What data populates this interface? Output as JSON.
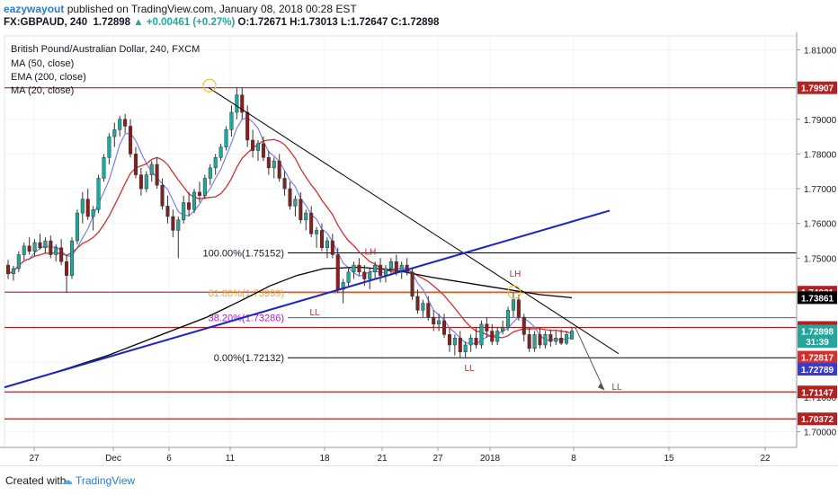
{
  "header": {
    "author": "eazywayout",
    "published_text": "published on TradingView.com, January 08, 2018 00:28 EST",
    "symbol": "FX:GBPAUD, 240",
    "last": "1.72898",
    "change": "▲ +0.00461 (+0.27%)",
    "ohlc_open_label": "O:",
    "ohlc_open": "1.72671",
    "ohlc_high_label": "H:",
    "ohlc_high": "1.73013",
    "ohlc_low_label": "L:",
    "ohlc_low": "1.72647",
    "ohlc_close_label": "C:",
    "ohlc_close": "1.72898"
  },
  "legend": {
    "title": "British Pound/Australian Dollar, 240, FXCM",
    "items": [
      "MA (50, close)",
      "EMA (200, close)",
      "MA (20, close)"
    ]
  },
  "footer": {
    "created_with": "Created with",
    "brand": "TradingView"
  },
  "colors": {
    "up_candle": "#26a69a",
    "down_candle": "#8b1d1d",
    "ma50": "#d32f2f",
    "ema200": "#000000",
    "ma20": "#7b7ef0",
    "trendline_up": "#1a24c8",
    "resistance": "#b22222",
    "fib_61": "#f0a030",
    "fib_38": "#b020c0"
  },
  "chart_data": {
    "type": "candlestick",
    "symbol": "GBPAUD",
    "timeframe": "240",
    "ylim": [
      1.6955,
      1.814
    ],
    "x_ticks": [
      "27",
      "Dec",
      "6",
      "11",
      "18",
      "21",
      "27",
      "2018",
      "8",
      "15",
      "22"
    ],
    "y_ticks": [
      "1.81000",
      "1.80000",
      "1.79000",
      "1.78000",
      "1.77000",
      "1.76000",
      "1.75000",
      "1.74000",
      "1.73000",
      "1.72000",
      "1.71000",
      "1.70000"
    ],
    "price_tags": [
      {
        "label": "1.79907",
        "value": 1.79907,
        "color": "#b22222"
      },
      {
        "label": "1.74021",
        "value": 1.74021,
        "color": "#b22222"
      },
      {
        "label": "1.73861",
        "value": 1.73861,
        "color": "#000000"
      },
      {
        "label": "1.73004",
        "value": 1.73004,
        "color": "#b22222"
      },
      {
        "label": "1.72898",
        "value": 1.72898,
        "color": "#26a69a"
      },
      {
        "label": "31:39",
        "value": 1.726,
        "color": "#26a69a"
      },
      {
        "label": "1.72817",
        "value": 1.7215,
        "color": "#d32f2f"
      },
      {
        "label": "1.72789",
        "value": 1.718,
        "color": "#3a3ad0"
      },
      {
        "label": "1.71147",
        "value": 1.71147,
        "color": "#b22222"
      },
      {
        "label": "1.70372",
        "value": 1.70372,
        "color": "#b22222"
      }
    ],
    "horizontal_levels": [
      1.79907,
      1.74021,
      1.73004,
      1.71147,
      1.70372
    ],
    "fibonacci": [
      {
        "label": "100.00%(1.75152)",
        "value": 1.75152
      },
      {
        "label": "61.80%(1.73999)",
        "value": 1.73999
      },
      {
        "label": "38.20%(1.73286)",
        "value": 1.73286
      },
      {
        "label": "0.00%(1.72132)",
        "value": 1.72132
      }
    ],
    "annotations": [
      "LH",
      "LL",
      "LH",
      "LL",
      "LL"
    ],
    "candles": [
      [
        1.748,
        1.7495,
        1.744,
        1.7455
      ],
      [
        1.7455,
        1.7478,
        1.7435,
        1.747
      ],
      [
        1.747,
        1.752,
        1.746,
        1.751
      ],
      [
        1.751,
        1.7545,
        1.7495,
        1.7535
      ],
      [
        1.7535,
        1.756,
        1.751,
        1.752
      ],
      [
        1.752,
        1.7555,
        1.7505,
        1.7545
      ],
      [
        1.7545,
        1.757,
        1.7525,
        1.753
      ],
      [
        1.753,
        1.756,
        1.7515,
        1.755
      ],
      [
        1.755,
        1.7565,
        1.75,
        1.751
      ],
      [
        1.751,
        1.754,
        1.749,
        1.753
      ],
      [
        1.753,
        1.7555,
        1.748,
        1.749
      ],
      [
        1.749,
        1.751,
        1.74,
        1.745
      ],
      [
        1.745,
        1.756,
        1.744,
        1.755
      ],
      [
        1.755,
        1.764,
        1.754,
        1.763
      ],
      [
        1.763,
        1.769,
        1.76,
        1.767
      ],
      [
        1.767,
        1.77,
        1.761,
        1.762
      ],
      [
        1.762,
        1.765,
        1.758,
        1.764
      ],
      [
        1.764,
        1.774,
        1.763,
        1.773
      ],
      [
        1.773,
        1.78,
        1.772,
        1.779
      ],
      [
        1.779,
        1.786,
        1.777,
        1.785
      ],
      [
        1.785,
        1.789,
        1.782,
        1.787
      ],
      [
        1.787,
        1.791,
        1.785,
        1.79
      ],
      [
        1.79,
        1.7915,
        1.786,
        1.788
      ],
      [
        1.788,
        1.79,
        1.779,
        1.78
      ],
      [
        1.78,
        1.782,
        1.773,
        1.774
      ],
      [
        1.774,
        1.776,
        1.768,
        1.77
      ],
      [
        1.77,
        1.775,
        1.769,
        1.774
      ],
      [
        1.774,
        1.778,
        1.772,
        1.777
      ],
      [
        1.777,
        1.779,
        1.77,
        1.771
      ],
      [
        1.771,
        1.773,
        1.764,
        1.765
      ],
      [
        1.765,
        1.768,
        1.76,
        1.762
      ],
      [
        1.762,
        1.764,
        1.756,
        1.758
      ],
      [
        1.758,
        1.762,
        1.75,
        1.761
      ],
      [
        1.761,
        1.768,
        1.76,
        1.766
      ],
      [
        1.766,
        1.769,
        1.762,
        1.764
      ],
      [
        1.764,
        1.77,
        1.763,
        1.769
      ],
      [
        1.769,
        1.772,
        1.766,
        1.768
      ],
      [
        1.768,
        1.774,
        1.767,
        1.773
      ],
      [
        1.773,
        1.777,
        1.771,
        1.776
      ],
      [
        1.776,
        1.78,
        1.774,
        1.779
      ],
      [
        1.779,
        1.783,
        1.778,
        1.782
      ],
      [
        1.782,
        1.788,
        1.781,
        1.787
      ],
      [
        1.787,
        1.794,
        1.785,
        1.792
      ],
      [
        1.792,
        1.7991,
        1.79,
        1.797
      ],
      [
        1.797,
        1.799,
        1.79,
        1.792
      ],
      [
        1.792,
        1.794,
        1.782,
        1.784
      ],
      [
        1.784,
        1.787,
        1.779,
        1.781
      ],
      [
        1.781,
        1.784,
        1.778,
        1.783
      ],
      [
        1.783,
        1.785,
        1.778,
        1.779
      ],
      [
        1.779,
        1.781,
        1.774,
        1.776
      ],
      [
        1.776,
        1.779,
        1.773,
        1.778
      ],
      [
        1.778,
        1.78,
        1.772,
        1.773
      ],
      [
        1.773,
        1.775,
        1.768,
        1.77
      ],
      [
        1.77,
        1.772,
        1.764,
        1.765
      ],
      [
        1.765,
        1.768,
        1.762,
        1.767
      ],
      [
        1.767,
        1.769,
        1.76,
        1.761
      ],
      [
        1.761,
        1.764,
        1.758,
        1.763
      ],
      [
        1.763,
        1.765,
        1.756,
        1.757
      ],
      [
        1.757,
        1.759,
        1.753,
        1.758
      ],
      [
        1.758,
        1.76,
        1.752,
        1.753
      ],
      [
        1.753,
        1.756,
        1.75,
        1.755
      ],
      [
        1.755,
        1.757,
        1.75,
        1.751
      ],
      [
        1.751,
        1.753,
        1.74,
        1.741
      ],
      [
        1.741,
        1.744,
        1.737,
        1.743
      ],
      [
        1.743,
        1.747,
        1.742,
        1.746
      ],
      [
        1.746,
        1.749,
        1.744,
        1.748
      ],
      [
        1.748,
        1.75,
        1.745,
        1.746
      ],
      [
        1.746,
        1.748,
        1.742,
        1.744
      ],
      [
        1.744,
        1.747,
        1.741,
        1.746
      ],
      [
        1.746,
        1.749,
        1.744,
        1.748
      ],
      [
        1.748,
        1.75,
        1.743,
        1.745
      ],
      [
        1.745,
        1.748,
        1.743,
        1.747
      ],
      [
        1.747,
        1.75,
        1.745,
        1.749
      ],
      [
        1.749,
        1.751,
        1.745,
        1.746
      ],
      [
        1.746,
        1.749,
        1.744,
        1.748
      ],
      [
        1.748,
        1.75,
        1.745,
        1.746
      ],
      [
        1.746,
        1.747,
        1.738,
        1.739
      ],
      [
        1.739,
        1.741,
        1.734,
        1.735
      ],
      [
        1.735,
        1.738,
        1.733,
        1.737
      ],
      [
        1.737,
        1.739,
        1.732,
        1.733
      ],
      [
        1.733,
        1.735,
        1.729,
        1.731
      ],
      [
        1.731,
        1.734,
        1.729,
        1.732
      ],
      [
        1.732,
        1.734,
        1.727,
        1.728
      ],
      [
        1.728,
        1.73,
        1.723,
        1.725
      ],
      [
        1.725,
        1.728,
        1.722,
        1.727
      ],
      [
        1.727,
        1.729,
        1.7213,
        1.723
      ],
      [
        1.723,
        1.726,
        1.7215,
        1.725
      ],
      [
        1.725,
        1.728,
        1.723,
        1.727
      ],
      [
        1.727,
        1.73,
        1.724,
        1.725
      ],
      [
        1.725,
        1.732,
        1.724,
        1.731
      ],
      [
        1.731,
        1.733,
        1.727,
        1.729
      ],
      [
        1.729,
        1.731,
        1.725,
        1.726
      ],
      [
        1.726,
        1.73,
        1.725,
        1.729
      ],
      [
        1.729,
        1.732,
        1.728,
        1.73
      ],
      [
        1.73,
        1.736,
        1.729,
        1.735
      ],
      [
        1.735,
        1.74,
        1.733,
        1.738
      ],
      [
        1.738,
        1.7395,
        1.732,
        1.733
      ],
      [
        1.733,
        1.734,
        1.726,
        1.728
      ],
      [
        1.728,
        1.73,
        1.723,
        1.724
      ],
      [
        1.724,
        1.729,
        1.723,
        1.728
      ],
      [
        1.728,
        1.73,
        1.724,
        1.725
      ],
      [
        1.725,
        1.729,
        1.724,
        1.728
      ],
      [
        1.728,
        1.7295,
        1.7245,
        1.726
      ],
      [
        1.726,
        1.729,
        1.725,
        1.727
      ],
      [
        1.727,
        1.7295,
        1.725,
        1.7255
      ],
      [
        1.7255,
        1.729,
        1.725,
        1.728
      ],
      [
        1.7267,
        1.7301,
        1.7265,
        1.729
      ]
    ]
  }
}
